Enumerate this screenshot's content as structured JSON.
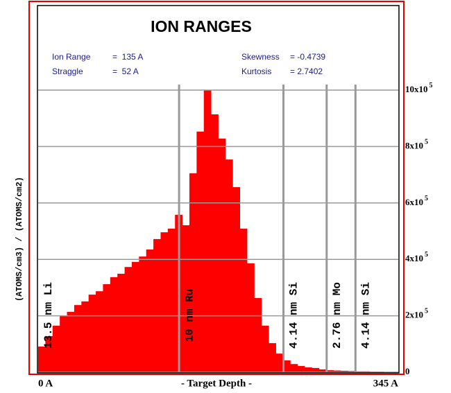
{
  "chart_data": {
    "type": "histogram",
    "title": "ION RANGES",
    "stats": [
      {
        "label": "Ion Range",
        "value": "=  135 A"
      },
      {
        "label": "Straggle",
        "value": "=  52 A"
      },
      {
        "label": "Skewness",
        "value": "= -0.4739"
      },
      {
        "label": "Kurtosis",
        "value": "= 2.7402"
      }
    ],
    "ylabel": "(ATOMS/cm3) / (ATOMS/cm2)",
    "xlabel": "- Target Depth -",
    "color": "#ff0000",
    "bins": [
      0,
      6.9,
      13.8,
      20.7,
      27.6,
      34.5,
      41.4,
      48.3,
      55.2,
      62.1,
      69,
      75.9,
      82.8,
      89.7,
      96.6,
      103.5,
      110.4,
      117.3,
      124.2,
      131.1,
      138,
      144.9,
      151.8,
      158.7,
      165.6,
      172.5,
      179.4,
      186.3,
      193.2,
      200.1,
      207,
      213.9,
      220.8,
      227.7,
      234.6,
      241.5,
      248.4,
      255.3,
      262.2,
      269.1,
      276,
      282.9,
      289.8,
      296.7,
      303.6,
      310.5,
      317.4,
      324.3,
      331.2,
      338.1,
      345
    ],
    "values": [
      91000,
      128000,
      165000,
      201000,
      214000,
      238000,
      251000,
      275000,
      287000,
      312000,
      337000,
      349000,
      373000,
      391000,
      410000,
      435000,
      472000,
      496000,
      509000,
      558000,
      521000,
      705000,
      853000,
      1000000,
      914000,
      828000,
      754000,
      656000,
      509000,
      386000,
      263000,
      165000,
      103000,
      66000,
      42000,
      29000,
      22000,
      17000,
      15000,
      10000,
      7000,
      6000,
      5000,
      4000,
      3000,
      3000,
      2000,
      2000,
      1000,
      1000
    ],
    "xlim": [
      0,
      345
    ],
    "xticks": [
      {
        "value": 0,
        "label": "0 A"
      },
      {
        "value": 345,
        "label": "345 A"
      }
    ],
    "ylim": [
      0,
      1000000
    ],
    "yticks": [
      0,
      {
        "value": 200000,
        "label": "2x10",
        "exponent": "5"
      },
      {
        "value": 400000,
        "label": "4x10",
        "exponent": "5"
      },
      {
        "value": 600000,
        "label": "6x10",
        "exponent": "5"
      },
      {
        "value": 800000,
        "label": "8x10",
        "exponent": "5"
      },
      {
        "value": 1000000,
        "label": "10x10",
        "exponent": "5"
      }
    ],
    "grid": true,
    "layers": [
      {
        "name": "13.5 nm Li",
        "start": 0,
        "end": 135
      },
      {
        "name": "10 nm Ru",
        "start": 135,
        "end": 235
      },
      {
        "name": "4.14 nm Si",
        "start": 235,
        "end": 276.4
      },
      {
        "name": "2.76 nm Mo",
        "start": 276.4,
        "end": 304
      },
      {
        "name": "4.14 nm Si",
        "start": 304,
        "end": 345
      }
    ]
  }
}
